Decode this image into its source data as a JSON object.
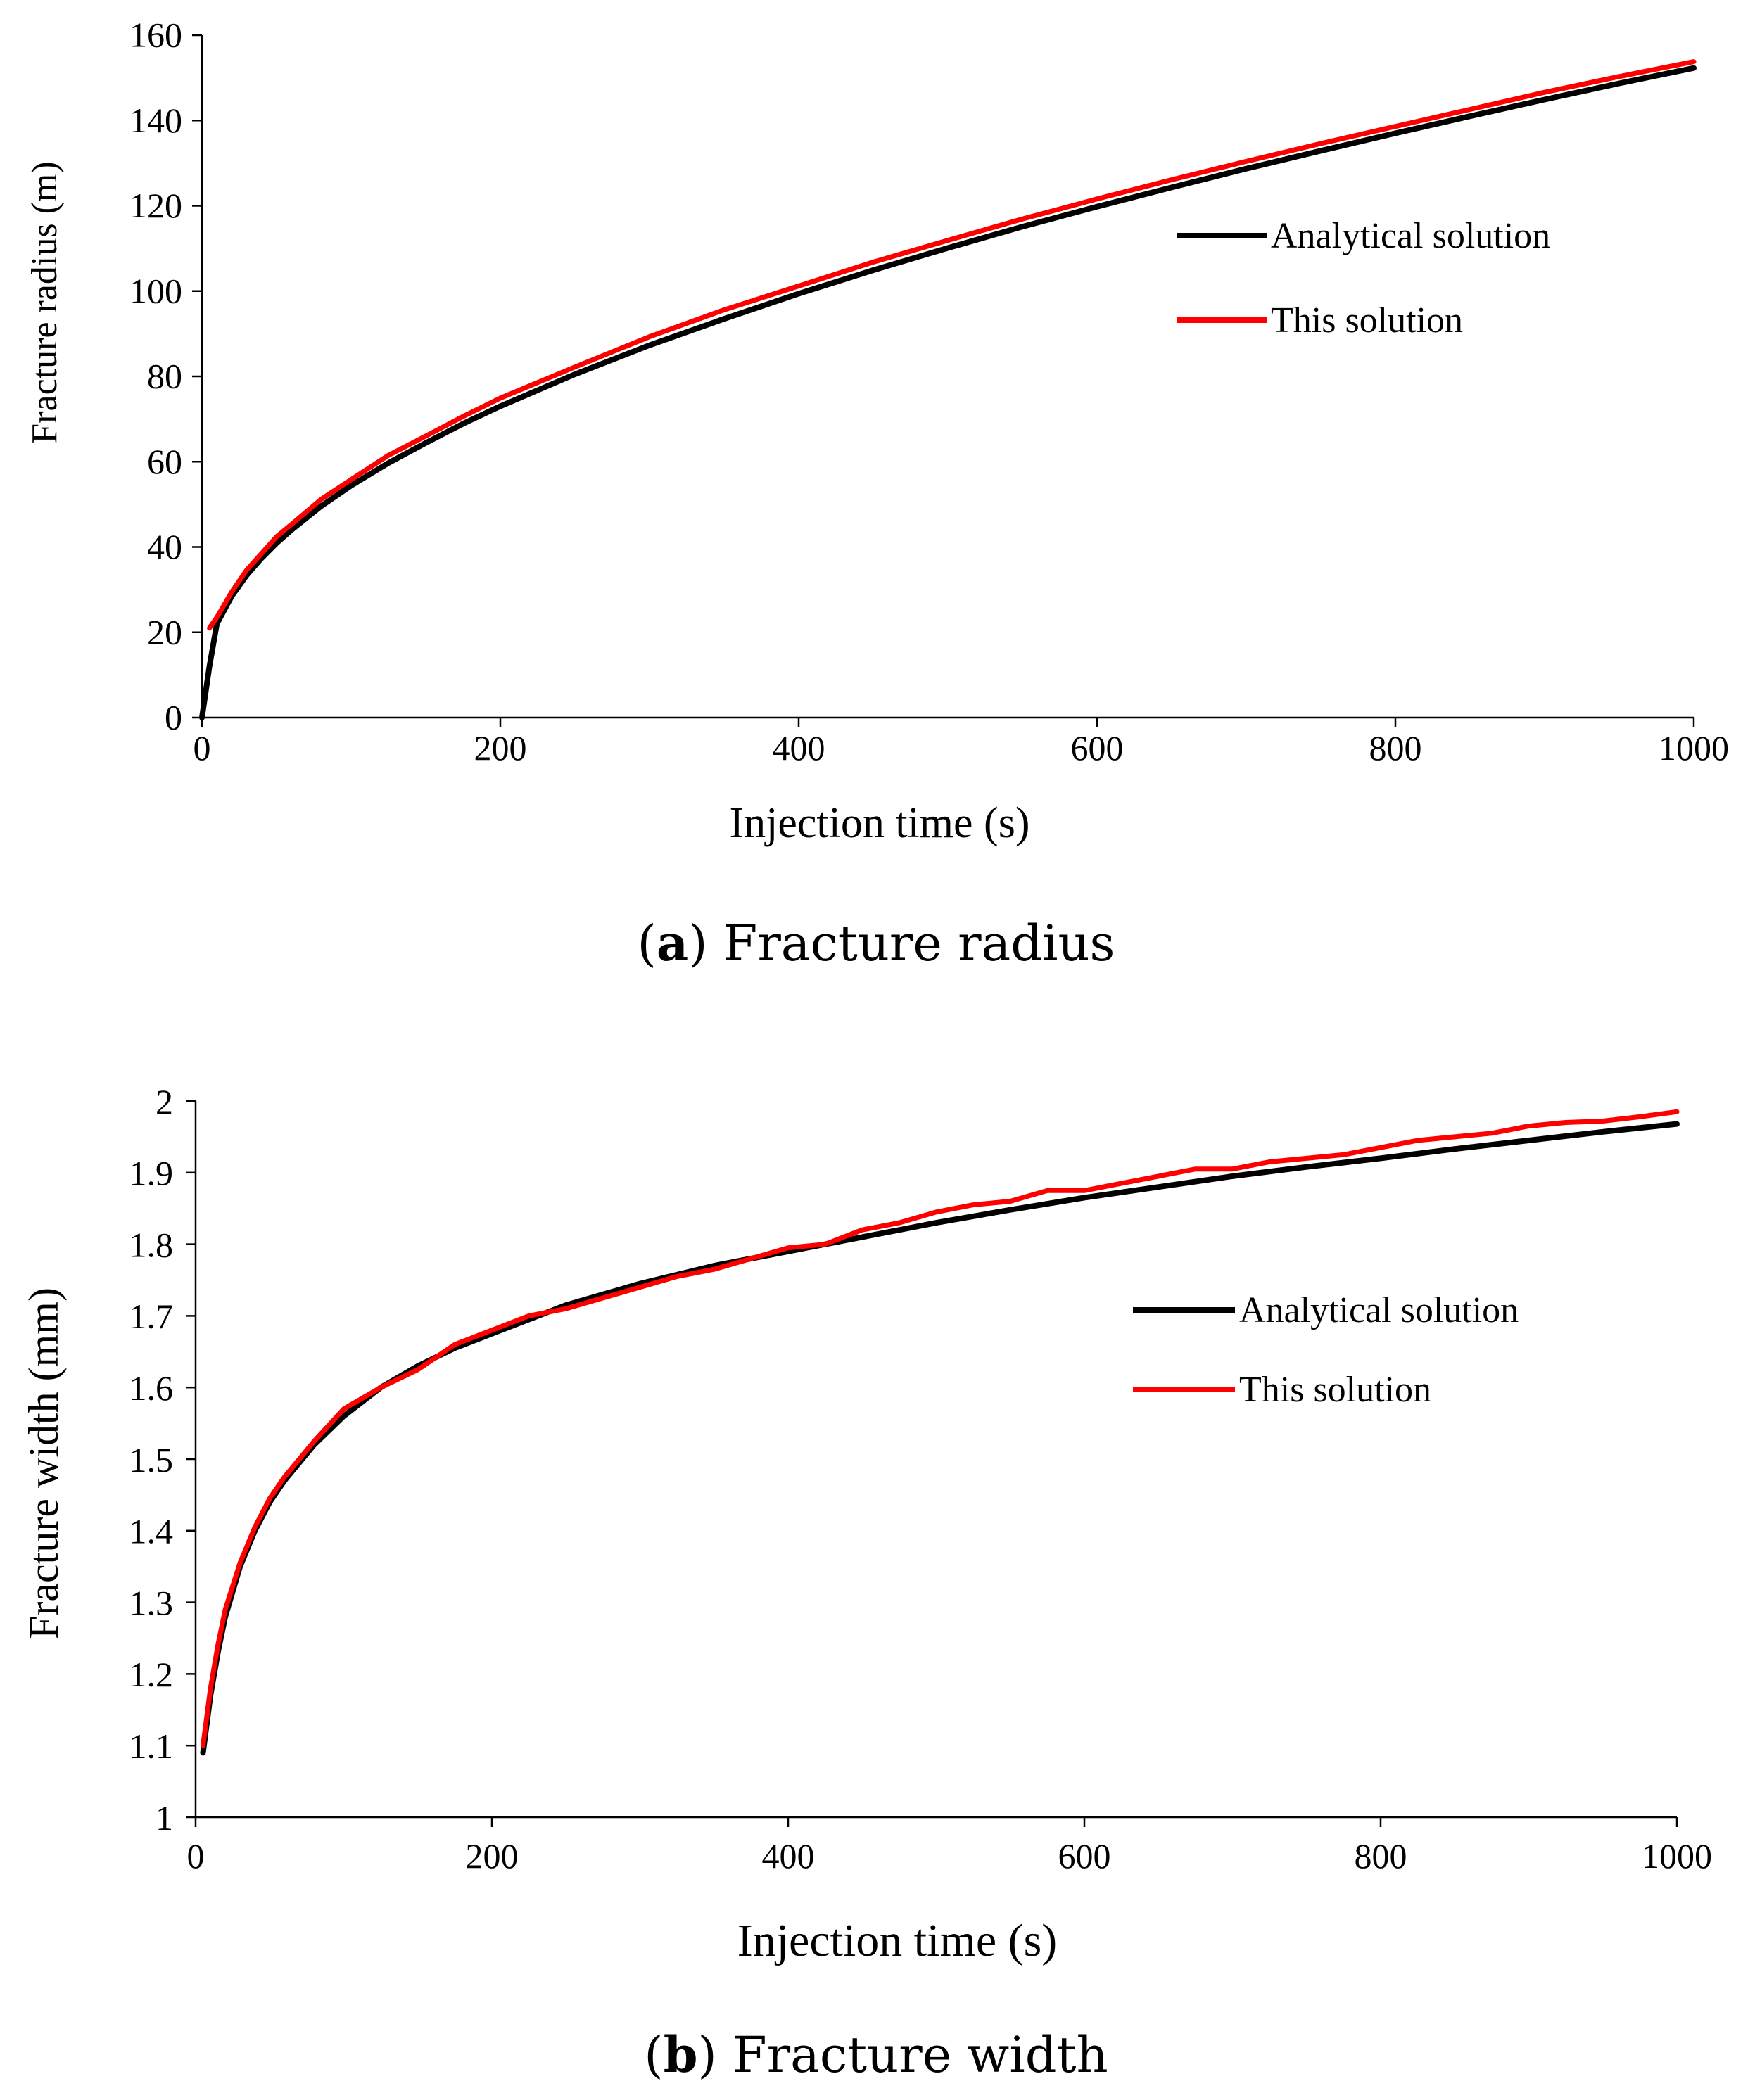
{
  "chart_data": [
    {
      "type": "line",
      "caption": {
        "letter": "a",
        "open": "(",
        "rest": ") Fracture radius"
      },
      "xlabel": "Injection time (s)",
      "ylabel": "Fracture radius (m)",
      "xlim": [
        0,
        1000
      ],
      "ylim": [
        0,
        160
      ],
      "xticks": [
        0,
        200,
        400,
        600,
        800,
        1000
      ],
      "yticks": [
        0,
        20,
        40,
        60,
        80,
        100,
        120,
        140,
        160
      ],
      "legend_position": "right",
      "grid": false,
      "series": [
        {
          "name": "Analytical solution",
          "color": "#000000",
          "x": [
            0,
            5,
            10,
            20,
            30,
            40,
            50,
            60,
            80,
            100,
            125,
            150,
            175,
            200,
            250,
            300,
            350,
            400,
            450,
            500,
            550,
            600,
            650,
            700,
            750,
            800,
            850,
            900,
            950,
            1000
          ],
          "y": [
            0,
            12,
            22,
            28.5,
            33.4,
            37.4,
            40.9,
            44.0,
            49.6,
            54.4,
            59.7,
            64.4,
            68.9,
            73.0,
            80.5,
            87.3,
            93.5,
            99.4,
            104.9,
            110.1,
            115.1,
            119.8,
            124.3,
            128.7,
            132.9,
            137.0,
            141.0,
            144.9,
            148.7,
            152.3
          ]
        },
        {
          "name": "This solution",
          "color": "#ff0000",
          "x": [
            5,
            10,
            20,
            30,
            40,
            50,
            60,
            80,
            100,
            125,
            150,
            175,
            200,
            250,
            300,
            350,
            400,
            450,
            500,
            550,
            600,
            650,
            700,
            750,
            800,
            850,
            900,
            950,
            1000
          ],
          "y": [
            21,
            23.5,
            29.5,
            34.6,
            38.5,
            42.4,
            45.3,
            51.2,
            55.8,
            61.5,
            66.0,
            70.6,
            74.9,
            82.2,
            89.3,
            95.6,
            101.2,
            106.8,
            111.9,
            116.9,
            121.6,
            126.1,
            130.4,
            134.6,
            138.6,
            142.6,
            146.6,
            150.3,
            153.8
          ]
        }
      ]
    },
    {
      "type": "line",
      "caption": {
        "letter": "b",
        "open": "(",
        "rest": ") Fracture width"
      },
      "xlabel": "Injection time (s)",
      "ylabel": "Fracture width (mm)",
      "xlim": [
        0,
        1000
      ],
      "ylim": [
        1,
        2
      ],
      "xticks": [
        0,
        200,
        400,
        600,
        800,
        1000
      ],
      "yticks": [
        1,
        1.1,
        1.2,
        1.3,
        1.4,
        1.5,
        1.6,
        1.7,
        1.8,
        1.9,
        2
      ],
      "legend_position": "right",
      "grid": false,
      "series": [
        {
          "name": "Analytical solution",
          "color": "#000000",
          "x": [
            5,
            10,
            15,
            20,
            30,
            40,
            50,
            60,
            80,
            100,
            125,
            150,
            175,
            200,
            250,
            300,
            350,
            400,
            450,
            500,
            550,
            600,
            650,
            700,
            750,
            800,
            850,
            900,
            950,
            1000
          ],
          "y": [
            1.09,
            1.17,
            1.23,
            1.28,
            1.35,
            1.4,
            1.44,
            1.47,
            1.52,
            1.56,
            1.6,
            1.63,
            1.655,
            1.675,
            1.715,
            1.745,
            1.77,
            1.79,
            1.81,
            1.83,
            1.848,
            1.865,
            1.88,
            1.895,
            1.908,
            1.92,
            1.933,
            1.945,
            1.957,
            1.968
          ]
        },
        {
          "name": "This solution",
          "color": "#ff0000",
          "x": [
            5,
            10,
            15,
            20,
            30,
            40,
            50,
            60,
            80,
            100,
            125,
            150,
            175,
            200,
            225,
            250,
            275,
            300,
            325,
            350,
            375,
            400,
            425,
            450,
            475,
            500,
            525,
            550,
            575,
            600,
            625,
            650,
            675,
            700,
            725,
            750,
            775,
            800,
            825,
            850,
            875,
            900,
            925,
            950,
            975,
            1000
          ],
          "y": [
            1.1,
            1.18,
            1.24,
            1.29,
            1.355,
            1.405,
            1.445,
            1.475,
            1.525,
            1.57,
            1.6,
            1.625,
            1.66,
            1.68,
            1.7,
            1.71,
            1.725,
            1.74,
            1.755,
            1.765,
            1.78,
            1.795,
            1.8,
            1.82,
            1.83,
            1.845,
            1.855,
            1.86,
            1.875,
            1.875,
            1.885,
            1.895,
            1.905,
            1.905,
            1.915,
            1.92,
            1.925,
            1.935,
            1.945,
            1.95,
            1.955,
            1.965,
            1.97,
            1.972,
            1.978,
            1.985
          ]
        }
      ]
    }
  ]
}
